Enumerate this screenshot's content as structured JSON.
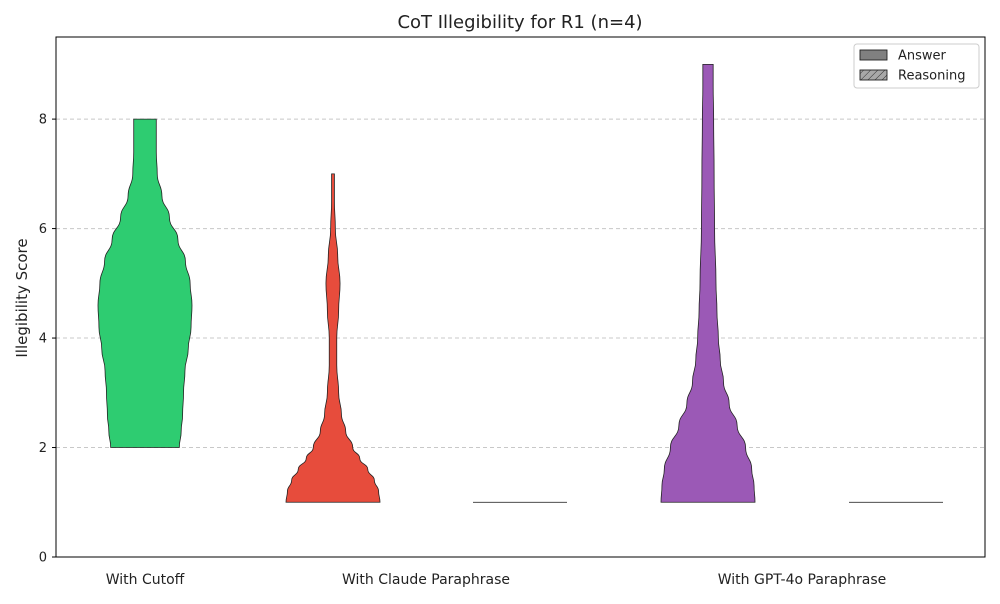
{
  "chart_data": {
    "type": "violin",
    "title": "CoT Illegibility for R1 (n=4)",
    "xlabel": "",
    "ylabel": "Illegibility Score",
    "ylim": [
      0,
      9.5
    ],
    "yticks": [
      0,
      2,
      4,
      6,
      8
    ],
    "grid": {
      "axis": "y",
      "style": "dashed"
    },
    "legend": {
      "placement": "top-right",
      "entries": [
        {
          "label": "Answer",
          "style": "solid",
          "color": "#808080"
        },
        {
          "label": "Reasoning",
          "style": "hatched",
          "color": "#a0a0a0"
        }
      ]
    },
    "group_labels": [
      "With Cutoff",
      "With Claude Paraphrase",
      "With GPT-4o Paraphrase"
    ],
    "violins": [
      {
        "group": "With Cutoff",
        "kind": "Answer",
        "color": "#2ecc71",
        "min": 2,
        "max": 8,
        "profile": [
          [
            2.0,
            0.73
          ],
          [
            2.3,
            0.77
          ],
          [
            2.6,
            0.8
          ],
          [
            3.0,
            0.82
          ],
          [
            3.4,
            0.85
          ],
          [
            3.8,
            0.92
          ],
          [
            4.2,
            0.98
          ],
          [
            4.6,
            1.0
          ],
          [
            5.0,
            0.96
          ],
          [
            5.4,
            0.86
          ],
          [
            5.8,
            0.7
          ],
          [
            6.2,
            0.52
          ],
          [
            6.6,
            0.36
          ],
          [
            7.0,
            0.26
          ],
          [
            7.4,
            0.24
          ],
          [
            7.8,
            0.24
          ],
          [
            8.0,
            0.24
          ]
        ]
      },
      {
        "group": "With Claude Paraphrase",
        "kind": "Answer",
        "color": "#e74c3c",
        "min": 1,
        "max": 7,
        "profile": [
          [
            1.0,
            1.0
          ],
          [
            1.2,
            0.97
          ],
          [
            1.4,
            0.88
          ],
          [
            1.6,
            0.74
          ],
          [
            1.8,
            0.57
          ],
          [
            2.0,
            0.42
          ],
          [
            2.3,
            0.27
          ],
          [
            2.6,
            0.18
          ],
          [
            3.0,
            0.12
          ],
          [
            3.5,
            0.08
          ],
          [
            4.0,
            0.08
          ],
          [
            4.5,
            0.12
          ],
          [
            5.0,
            0.15
          ],
          [
            5.5,
            0.1
          ],
          [
            6.0,
            0.05
          ],
          [
            6.5,
            0.03
          ],
          [
            7.0,
            0.03
          ]
        ]
      },
      {
        "group": "With Claude Paraphrase",
        "kind": "Reasoning",
        "color": "#e74c3c",
        "min": 1,
        "max": 1,
        "profile": []
      },
      {
        "group": "With GPT-4o Paraphrase",
        "kind": "Answer",
        "color": "#9b59b6",
        "min": 1,
        "max": 9,
        "profile": [
          [
            1.0,
            1.0
          ],
          [
            1.3,
            0.98
          ],
          [
            1.6,
            0.93
          ],
          [
            2.0,
            0.8
          ],
          [
            2.4,
            0.62
          ],
          [
            2.8,
            0.45
          ],
          [
            3.2,
            0.33
          ],
          [
            3.6,
            0.26
          ],
          [
            4.0,
            0.22
          ],
          [
            4.5,
            0.19
          ],
          [
            5.0,
            0.17
          ],
          [
            6.0,
            0.14
          ],
          [
            7.0,
            0.13
          ],
          [
            8.0,
            0.12
          ],
          [
            8.6,
            0.11
          ],
          [
            9.0,
            0.11
          ]
        ]
      },
      {
        "group": "With GPT-4o Paraphrase",
        "kind": "Reasoning",
        "color": "#9b59b6",
        "min": 1,
        "max": 1,
        "profile": []
      }
    ]
  }
}
